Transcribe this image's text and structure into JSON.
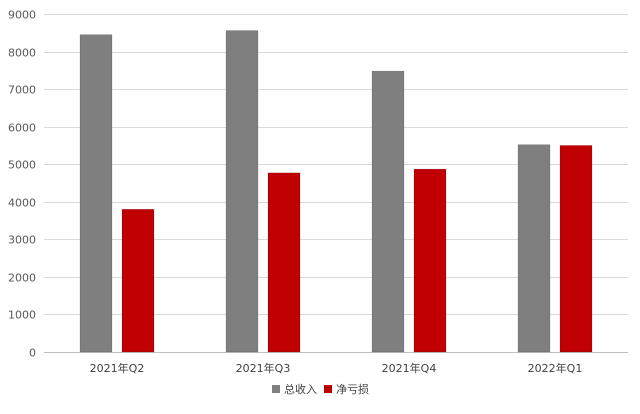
{
  "chart_data": {
    "type": "bar",
    "categories": [
      "2021年Q2",
      "2021年Q3",
      "2021年Q4",
      "2022年Q1"
    ],
    "series": [
      {
        "name": "总收入",
        "values": [
          8450,
          8560,
          7480,
          5520
        ],
        "color": "#7f7f7f"
      },
      {
        "name": "净亏损",
        "values": [
          3800,
          4770,
          4870,
          5500
        ],
        "color": "#c00000"
      }
    ],
    "ylim": [
      0,
      9000
    ],
    "yticks": [
      0,
      1000,
      2000,
      3000,
      4000,
      5000,
      6000,
      7000,
      8000,
      9000
    ],
    "grid": true,
    "legend_position": "bottom"
  }
}
